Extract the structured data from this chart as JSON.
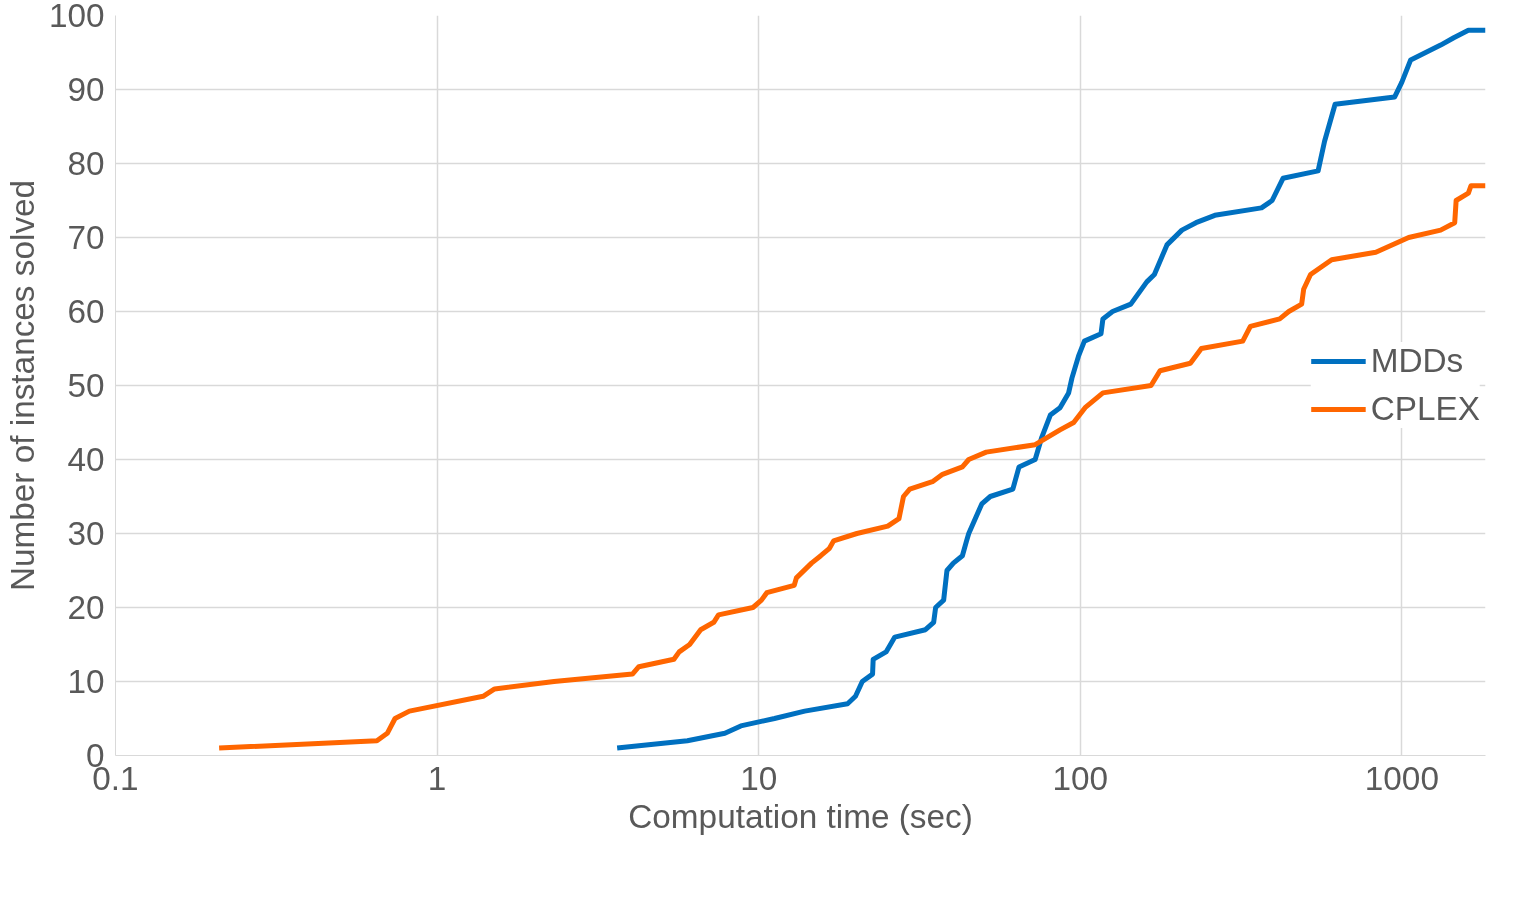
{
  "chart_data": {
    "type": "line",
    "xlabel": "Computation time (sec)",
    "ylabel": "Number of instances solved",
    "log": "x",
    "grid": true,
    "legend": "right",
    "line_style": "solid",
    "marker": "none",
    "xlim": [
      0.1,
      1820
    ],
    "xticks": [
      0.1,
      1,
      10,
      100,
      1000
    ],
    "ylim": [
      0,
      100
    ],
    "yticks": [
      0,
      10,
      20,
      30,
      40,
      50,
      60,
      70,
      80,
      90,
      100
    ],
    "series": [
      {
        "name": "MDDs",
        "color": "#0070c0",
        "x": [
          3.63,
          6.0,
          7.85,
          8.8,
          11.2,
          13.9,
          18.9,
          20,
          21,
          22.6,
          22.7,
          24.9,
          26.5,
          33,
          35,
          35.5,
          37.6,
          38.5,
          40.3,
          43,
          44.3,
          45,
          49.4,
          52.5,
          61.7,
          64.5,
          72.4,
          75.9,
          80.7,
          86.5,
          92,
          94.2,
          98.8,
          103,
          116,
          117.6,
          126,
          143.6,
          161,
          170,
          186,
          207,
          229,
          262,
          366,
          395,
          427,
          549,
          575,
          620,
          950,
          1000,
          1065,
          1320,
          1450,
          1610,
          1820
        ],
        "values": [
          1,
          2,
          3,
          4,
          5,
          6,
          7,
          8,
          10,
          11,
          13,
          14,
          16,
          17,
          18,
          20,
          21,
          25,
          26,
          27,
          29,
          30,
          34,
          35,
          36,
          39,
          40,
          43,
          46,
          47,
          49,
          51,
          54,
          56,
          57,
          59,
          60,
          61,
          64,
          65,
          69,
          71,
          72,
          73,
          74,
          75,
          78,
          79,
          83,
          88,
          89,
          91,
          94,
          96,
          97,
          98,
          98
        ]
      },
      {
        "name": "CPLEX",
        "color": "#ff6600",
        "x": [
          0.21,
          0.65,
          0.7,
          0.74,
          0.82,
          1.39,
          1.51,
          2.31,
          4.05,
          4.24,
          5.45,
          5.66,
          6.1,
          6.6,
          7.25,
          7.5,
          9.6,
          10.2,
          10.6,
          12.9,
          13.1,
          14.6,
          15.6,
          16.6,
          17.1,
          20.2,
          25.2,
          27.3,
          28.2,
          29.5,
          34.7,
          37.3,
          43,
          45,
          51,
          72.4,
          86.5,
          95.4,
          103.5,
          117.6,
          166,
          177,
          220,
          238,
          320,
          338,
          417,
          445,
          488,
          495,
          520,
          605,
          830,
          1050,
          1320,
          1460,
          1475,
          1610,
          1640,
          1820
        ],
        "values": [
          1,
          2,
          3,
          5,
          6,
          8,
          9,
          10,
          11,
          12,
          13,
          14,
          15,
          17,
          18,
          19,
          20,
          21,
          22,
          23,
          24,
          26,
          27,
          28,
          29,
          30,
          31,
          32,
          35,
          36,
          37,
          38,
          39,
          40,
          41,
          42,
          44,
          45,
          47,
          49,
          50,
          52,
          53,
          55,
          56,
          58,
          59,
          60,
          61,
          63,
          65,
          67,
          68,
          70,
          71,
          72,
          75,
          76,
          77,
          77
        ]
      }
    ]
  }
}
